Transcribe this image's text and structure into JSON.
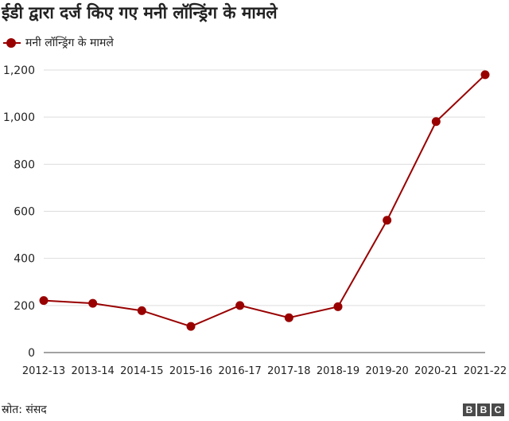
{
  "chart_data": {
    "type": "line",
    "title": "ईडी द्वारा दर्ज किए गए मनी लॉन्ड्रिंग के मामले",
    "categories": [
      "2012-13",
      "2013-14",
      "2014-15",
      "2015-16",
      "2016-17",
      "2017-18",
      "2018-19",
      "2019-20",
      "2020-21",
      "2021-22"
    ],
    "series": [
      {
        "name": "मनी लॉन्ड्रिंग के मामले",
        "values": [
          221,
          209,
          178,
          111,
          200,
          148,
          195,
          562,
          981,
          1180
        ],
        "color": "#990000"
      }
    ],
    "yticks": [
      "0",
      "200",
      "400",
      "600",
      "800",
      "1,000",
      "1,200"
    ],
    "ylim": [
      0,
      1200
    ],
    "grid": true,
    "legend": "top-left"
  },
  "footer": {
    "source": "स्रोत: संसद",
    "brand": [
      "B",
      "B",
      "C"
    ]
  }
}
